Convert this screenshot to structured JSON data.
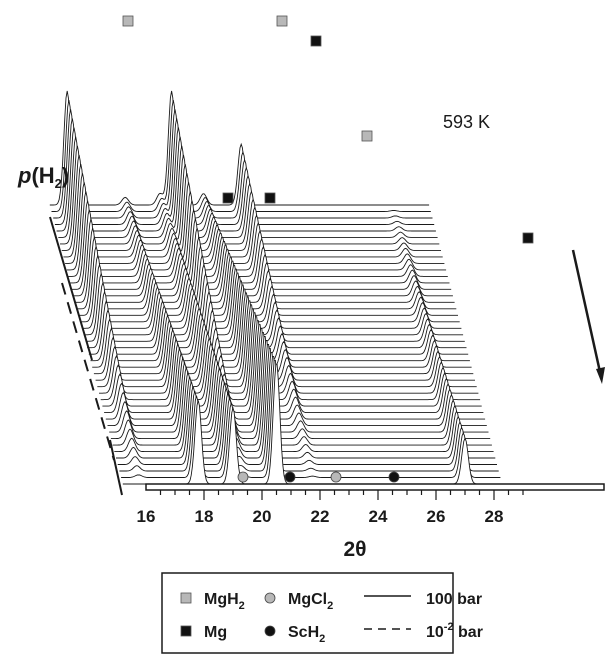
{
  "chart_data": {
    "type": "line",
    "subtype": "waterfall-3d",
    "annotation": "593 K",
    "xlabel": "2θ",
    "ylabel_main": "p(H",
    "ylabel_sub": "2",
    "ylabel_close": ")",
    "x_ticks": [
      "16",
      "18",
      "20",
      "22",
      "24",
      "26",
      "28"
    ],
    "xlim": [
      15.2,
      29.2
    ],
    "n_scans": 44,
    "pressure_direction": "decreasing from 100 bar (back) to 10^-2 bar (front)",
    "peaks": [
      {
        "phase": "MgH2",
        "pos": 15.8,
        "height_front": 0.0,
        "height_back": 3.0
      },
      {
        "phase": "Mg",
        "pos": 17.8,
        "height_front": 2.2,
        "height_back": 0.2
      },
      {
        "phase": "Mg",
        "pos": 19.0,
        "height_front": 2.0,
        "height_back": 0.3
      },
      {
        "phase": "MgH2",
        "pos": 19.4,
        "height_front": 0.0,
        "height_back": 3.0
      },
      {
        "phase": "Mg",
        "pos": 20.5,
        "height_front": 3.2,
        "height_back": 0.3
      },
      {
        "phase": "MgH2",
        "pos": 21.8,
        "height_front": 0.0,
        "height_back": 1.6
      },
      {
        "phase": "Mg",
        "pos": 27.0,
        "height_front": 1.2,
        "height_back": 0.0
      }
    ],
    "peak_markers": [
      {
        "phase": "MgH2",
        "pos": 15.8
      },
      {
        "phase": "MgH2",
        "pos": 19.4
      },
      {
        "phase": "Mg",
        "pos": 20.5
      },
      {
        "phase": "MgH2",
        "pos": 21.8
      },
      {
        "phase": "Mg",
        "pos": 17.8
      },
      {
        "phase": "Mg",
        "pos": 19.0
      },
      {
        "phase": "Mg",
        "pos": 27.0
      }
    ],
    "axis_markers": [
      {
        "phase": "MgCl2",
        "pos": 18.2
      },
      {
        "phase": "ScH2",
        "pos": 19.6
      },
      {
        "phase": "MgCl2",
        "pos": 21.0
      },
      {
        "phase": "ScH2",
        "pos": 22.7
      }
    ],
    "legend": [
      {
        "symbol": "square",
        "color": "#b8b8b8",
        "label": "MgH",
        "sub": "2"
      },
      {
        "symbol": "circle",
        "color": "#b8b8b8",
        "label": "MgCl",
        "sub": "2"
      },
      {
        "symbol": "solid-line",
        "color": "#1a1a1a",
        "label": "100 bar",
        "sub": ""
      },
      {
        "symbol": "square",
        "color": "#111111",
        "label": "Mg",
        "sub": ""
      },
      {
        "symbol": "circle",
        "color": "#111111",
        "label": "ScH",
        "sub": "2"
      },
      {
        "symbol": "dashed-line",
        "color": "#1a1a1a",
        "label": "10",
        "sup": "-2",
        "label_tail": " bar"
      }
    ],
    "legend_placement": "bottom",
    "colors": {
      "MgH2": "#b8b8b8",
      "MgCl2": "#b8b8b8",
      "Mg": "#111111",
      "ScH2": "#111111",
      "trace": "#1a1a1a"
    }
  }
}
